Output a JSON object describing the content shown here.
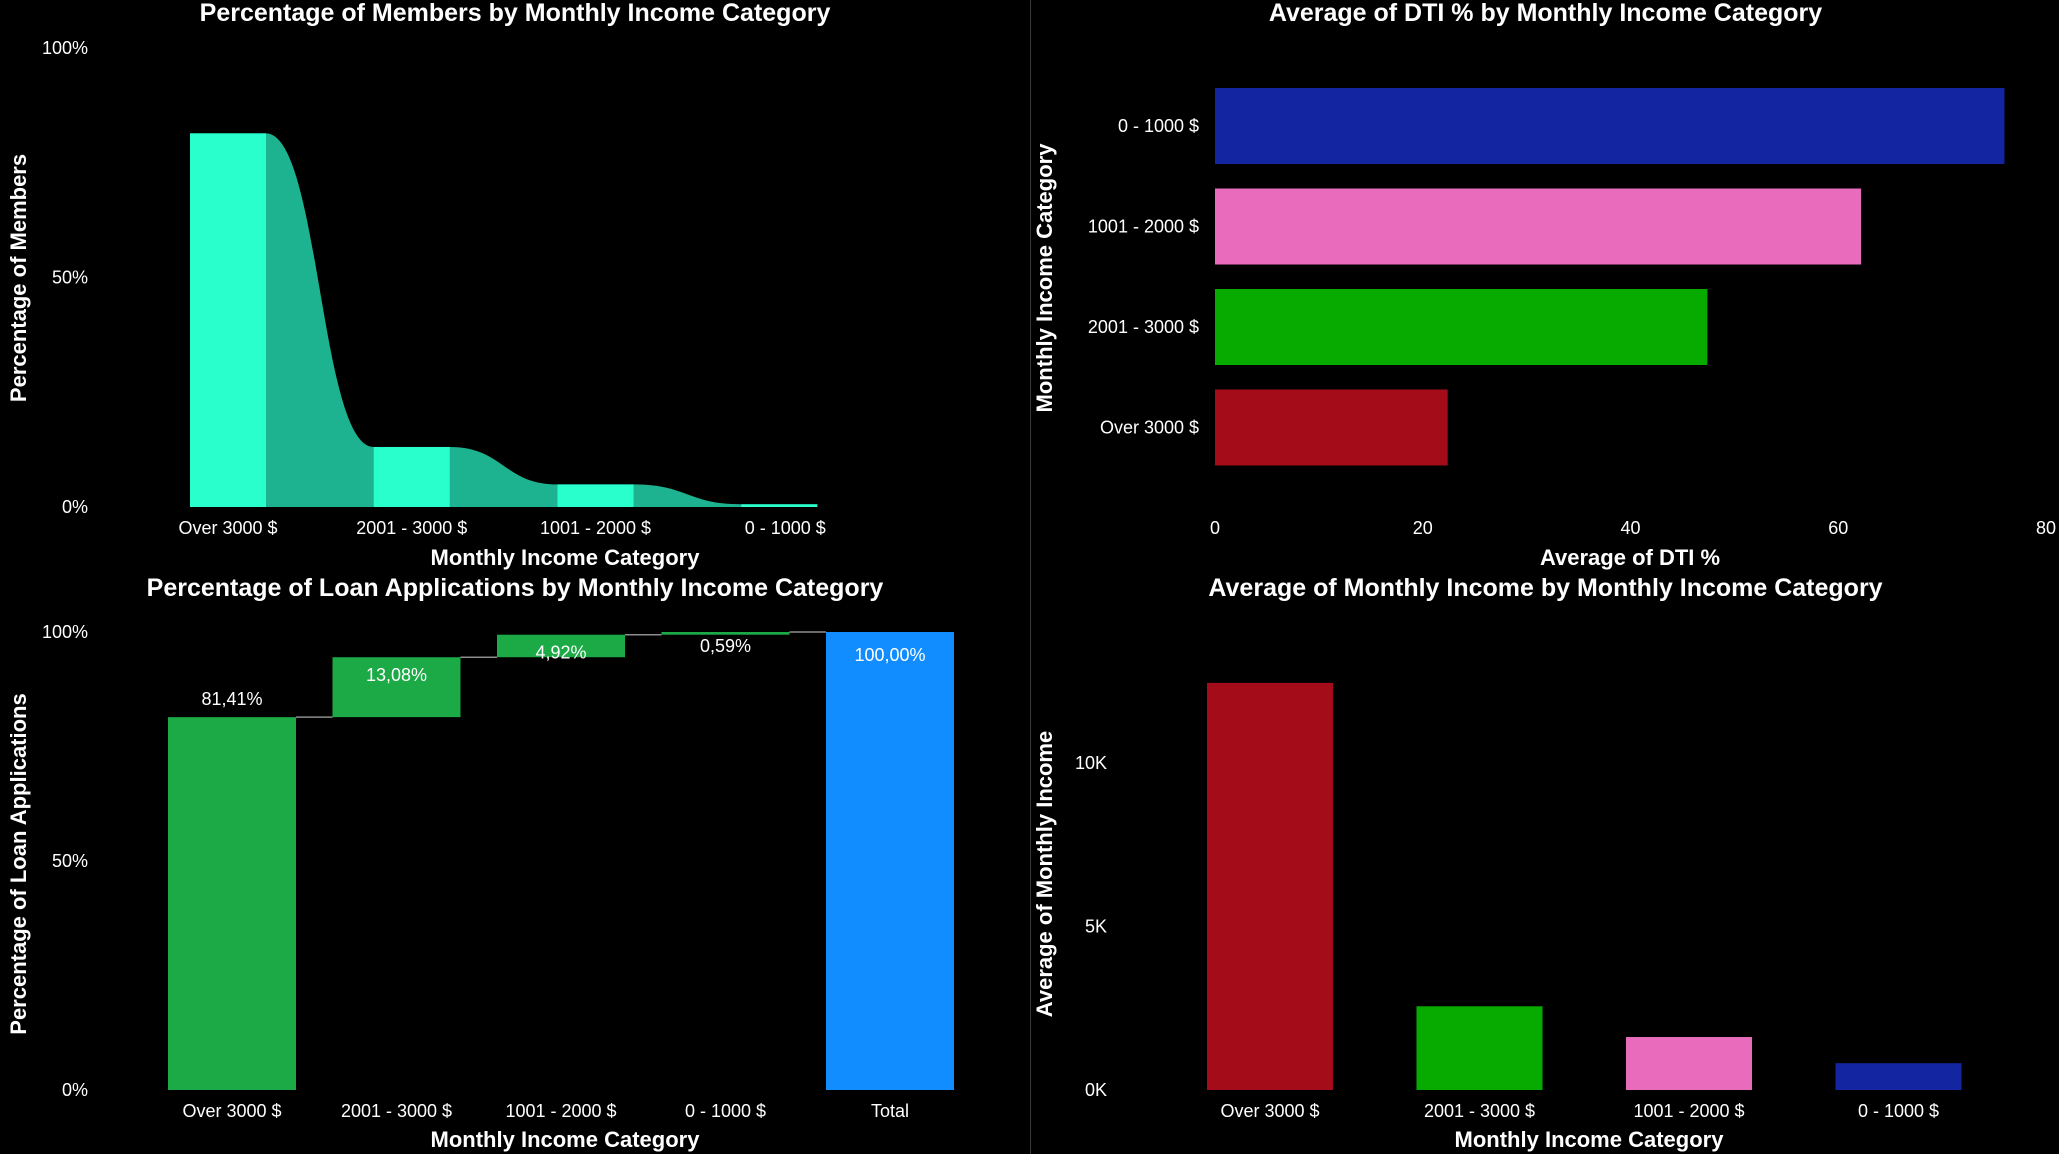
{
  "charts": [
    {
      "id": "members",
      "title": "Percentage of Members by Monthly Income Category",
      "chart_data": {
        "type": "area",
        "categories": [
          "Over 3000 $",
          "2001 - 3000 $",
          "1001 - 2000 $",
          "0 - 1000 $"
        ],
        "values": [
          81.41,
          13.08,
          4.92,
          0.59
        ],
        "xlabel": "Monthly Income Category",
        "ylabel": "Percentage of Members",
        "ylim": [
          0,
          100
        ],
        "yticks": [
          "0%",
          "50%",
          "100%"
        ],
        "grid": false,
        "colors": {
          "highlight": "#29FFCC",
          "ribbon": "#1DB390"
        }
      }
    },
    {
      "id": "dti",
      "title": "Average of DTI % by Monthly Income Category",
      "chart_data": {
        "type": "bar",
        "orientation": "horizontal",
        "categories": [
          "0 - 1000 $",
          "1001 - 2000 $",
          "2001 - 3000 $",
          "Over 3000 $"
        ],
        "values": [
          76,
          62.2,
          47.4,
          22.4
        ],
        "colors": [
          "#1325A0",
          "#E96CBC",
          "#07AB00",
          "#A50C1A"
        ],
        "xlabel": "Average of DTI %",
        "ylabel": "Monthly Income Category",
        "xlim": [
          0,
          80
        ],
        "xticks": [
          "0",
          "20",
          "40",
          "60",
          "80"
        ],
        "grid": false
      }
    },
    {
      "id": "loans",
      "title": "Percentage of Loan Applications by Monthly Income Category",
      "chart_data": {
        "type": "bar",
        "subtype": "waterfall",
        "categories": [
          "Over 3000 $",
          "2001 - 3000 $",
          "1001 - 2000 $",
          "0 - 1000 $",
          "Total"
        ],
        "values": [
          81.41,
          13.08,
          4.92,
          0.59,
          100
        ],
        "labels": [
          "81,41%",
          "13,08%",
          "4,92%",
          "0,59%",
          "100,00%"
        ],
        "xlabel": "Monthly Income Category",
        "ylabel": "Percentage of Loan Applications",
        "ylim": [
          0,
          100
        ],
        "yticks": [
          "0%",
          "50%",
          "100%"
        ],
        "grid": false,
        "colors": {
          "increase": "#1BAA45",
          "total": "#118DFF"
        }
      }
    },
    {
      "id": "income",
      "title": "Average of Monthly Income by Monthly Income Category",
      "chart_data": {
        "type": "bar",
        "categories": [
          "Over 3000 $",
          "2001 - 3000 $",
          "1001 - 2000 $",
          "0 - 1000 $"
        ],
        "values": [
          12450,
          2560,
          1620,
          820
        ],
        "colors": [
          "#A50C1A",
          "#07AB00",
          "#E96CBC",
          "#1325A0"
        ],
        "xlabel": "Monthly Income Category",
        "ylabel": "Average of Monthly Income",
        "ylim": [
          0,
          14000
        ],
        "yticks": [
          "0K",
          "5K",
          "10K"
        ],
        "ytick_values": [
          0,
          5000,
          10000
        ],
        "grid": false
      }
    }
  ]
}
